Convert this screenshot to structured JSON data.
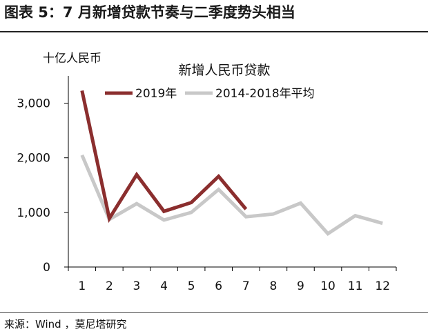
{
  "figure_title": "图表 5：7 月新增贷款节奏与二季度势头相当",
  "source_text": "来源：Wind ，莫尼塔研究",
  "colors": {
    "series_2019": "#8B2E2E",
    "series_avg": "#C8C8C8",
    "axis": "#000000"
  },
  "chart_data": {
    "type": "line",
    "title": "新增人民币贷款",
    "ylabel": "十亿人民币",
    "xlabel": "",
    "ylim": [
      0,
      3500
    ],
    "yticks": [
      0,
      1000,
      2000,
      3000
    ],
    "ytick_labels": [
      "0",
      "1,000",
      "2,000",
      "3,000"
    ],
    "x": [
      1,
      2,
      3,
      4,
      5,
      6,
      7,
      8,
      9,
      10,
      11,
      12
    ],
    "x_labels": [
      "1",
      "2",
      "3",
      "4",
      "5",
      "6",
      "7",
      "8",
      "9",
      "10",
      "11",
      "12"
    ],
    "legend_position": "top",
    "grid": false,
    "series": [
      {
        "name": "2019年",
        "color": "#8B2E2E",
        "x": [
          1,
          2,
          3,
          4,
          5,
          6,
          7
        ],
        "values": [
          3230,
          890,
          1690,
          1020,
          1180,
          1660,
          1060
        ]
      },
      {
        "name": "2014-2018年平均",
        "color": "#C8C8C8",
        "x": [
          1,
          2,
          3,
          4,
          5,
          6,
          7,
          8,
          9,
          10,
          11,
          12
        ],
        "values": [
          2050,
          870,
          1160,
          860,
          1000,
          1420,
          920,
          970,
          1170,
          610,
          940,
          800
        ]
      }
    ]
  }
}
